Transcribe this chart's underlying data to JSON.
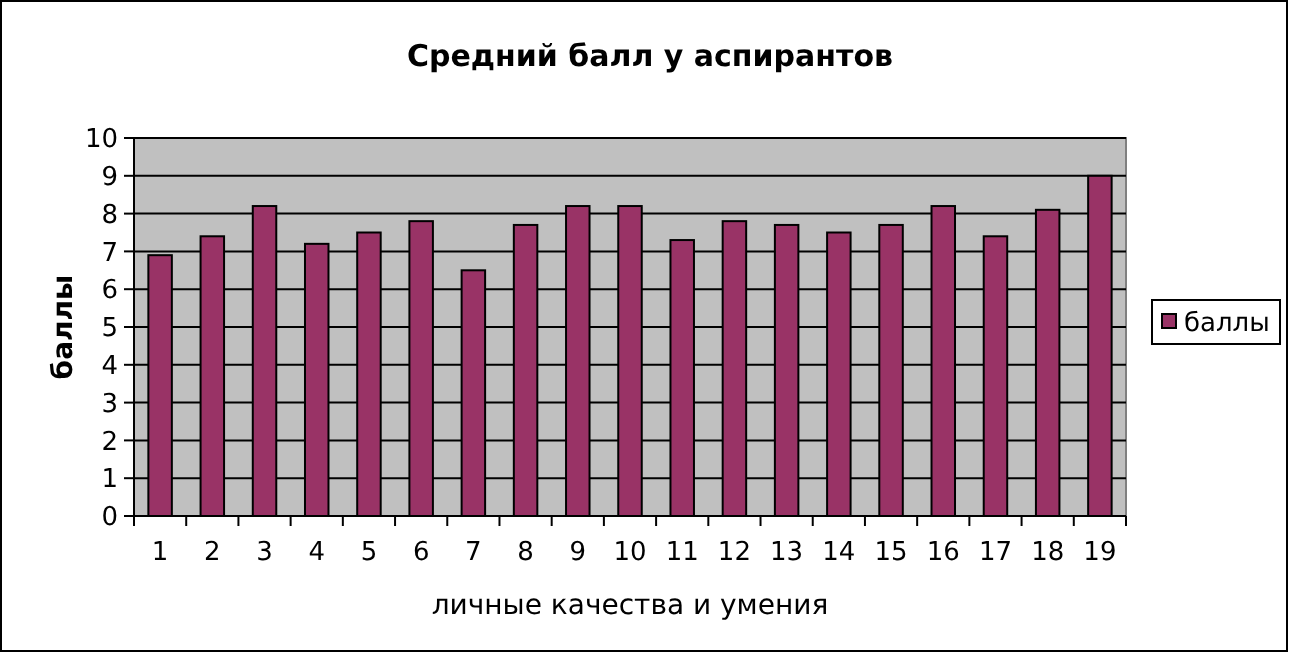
{
  "chart_data": {
    "type": "bar",
    "title": "Средний балл у аспирантов",
    "xlabel": "личные качества и умения",
    "ylabel": "баллы",
    "categories": [
      "1",
      "2",
      "3",
      "4",
      "5",
      "6",
      "7",
      "8",
      "9",
      "10",
      "11",
      "12",
      "13",
      "14",
      "15",
      "16",
      "17",
      "18",
      "19"
    ],
    "series": [
      {
        "name": "баллы",
        "color": "#993366",
        "values": [
          6.9,
          7.4,
          8.2,
          7.2,
          7.5,
          7.8,
          6.5,
          7.7,
          8.2,
          8.2,
          7.3,
          7.8,
          7.7,
          7.5,
          7.7,
          8.2,
          7.4,
          8.1,
          9.0
        ]
      }
    ],
    "ylim": [
      0,
      10
    ],
    "yticks": [
      0,
      1,
      2,
      3,
      4,
      5,
      6,
      7,
      8,
      9,
      10
    ],
    "grid": "y",
    "legend": "right"
  }
}
